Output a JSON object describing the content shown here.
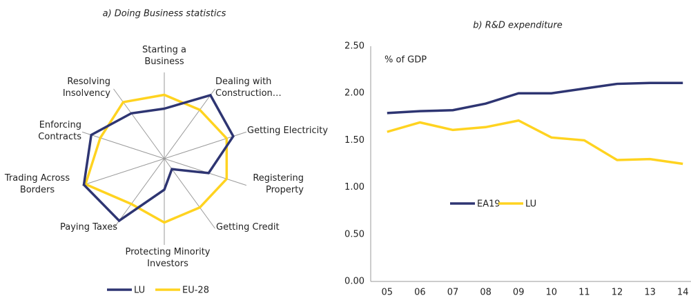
{
  "chart_data": [
    {
      "type": "radar",
      "title": "a) Doing Business statistics",
      "categories": [
        "Starting a Business",
        "Dealing with Construction…",
        "Getting Electricity",
        "Registering Property",
        "Getting Credit",
        "Protecting Minority Investors",
        "Paying Taxes",
        "Trading Across Borders",
        "Enforcing Contracts",
        "Resolving Insolvency"
      ],
      "rlim": [
        0,
        100
      ],
      "series": [
        {
          "name": "LU",
          "color": "#2e3572",
          "values": [
            58,
            91,
            84,
            54,
            15,
            36,
            89,
            98,
            89,
            65
          ]
        },
        {
          "name": "EU-28",
          "color": "#ffd320",
          "values": [
            74,
            70,
            76,
            76,
            70,
            74,
            65,
            96,
            78,
            81
          ]
        }
      ]
    },
    {
      "type": "line",
      "title": "b) R&D expenditure",
      "annotation": "% of GDP",
      "categories": [
        "05",
        "06",
        "07",
        "08",
        "09",
        "10",
        "11",
        "12",
        "13",
        "14"
      ],
      "ylim": [
        0,
        2.5
      ],
      "yticks": [
        {
          "value": 0,
          "label": "0.00"
        },
        {
          "value": 0.5,
          "label": "0.50"
        },
        {
          "value": 1,
          "label": "1.00"
        },
        {
          "value": 1.5,
          "label": "1.50"
        },
        {
          "value": 2,
          "label": "2.00"
        },
        {
          "value": 2.5,
          "label": "2.50"
        }
      ],
      "series": [
        {
          "name": "EA19",
          "color": "#2e3572",
          "values": [
            1.79,
            1.81,
            1.82,
            1.89,
            2.0,
            2.0,
            2.05,
            2.1,
            2.11,
            2.11
          ]
        },
        {
          "name": "LU",
          "color": "#ffd320",
          "values": [
            1.59,
            1.69,
            1.61,
            1.64,
            1.71,
            1.53,
            1.5,
            1.29,
            1.3,
            1.25
          ]
        }
      ]
    }
  ]
}
